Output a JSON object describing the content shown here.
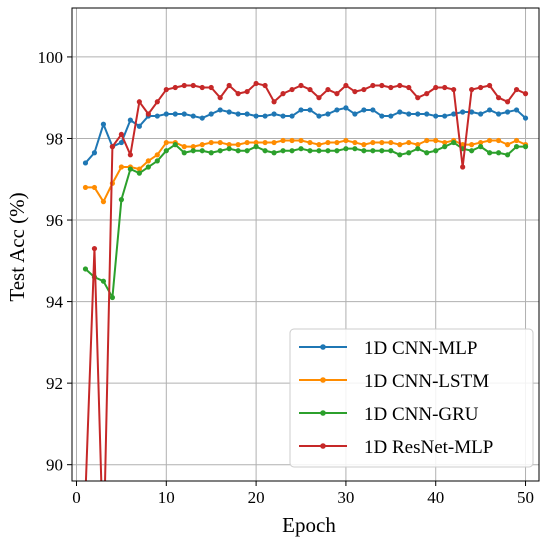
{
  "chart_data": {
    "type": "line",
    "title": "",
    "xlabel": "Epoch",
    "ylabel": "Test Acc (%)",
    "xlim": [
      -0.5,
      51.5
    ],
    "ylim": [
      89.6,
      101.2
    ],
    "xticks": [
      0,
      10,
      20,
      30,
      40,
      50
    ],
    "yticks": [
      90,
      92,
      94,
      96,
      98,
      100
    ],
    "grid": true,
    "legend_position": "bottom-right",
    "x": [
      1,
      2,
      3,
      4,
      5,
      6,
      7,
      8,
      9,
      10,
      11,
      12,
      13,
      14,
      15,
      16,
      17,
      18,
      19,
      20,
      21,
      22,
      23,
      24,
      25,
      26,
      27,
      28,
      29,
      30,
      31,
      32,
      33,
      34,
      35,
      36,
      37,
      38,
      39,
      40,
      41,
      42,
      43,
      44,
      45,
      46,
      47,
      48,
      49,
      50
    ],
    "series": [
      {
        "name": "1D CNN-MLP",
        "color": "#1f77b4",
        "values": [
          97.4,
          97.65,
          98.35,
          97.8,
          97.9,
          98.45,
          98.3,
          98.55,
          98.55,
          98.6,
          98.6,
          98.6,
          98.55,
          98.5,
          98.6,
          98.7,
          98.65,
          98.6,
          98.6,
          98.55,
          98.55,
          98.6,
          98.55,
          98.55,
          98.7,
          98.7,
          98.55,
          98.6,
          98.7,
          98.75,
          98.6,
          98.7,
          98.7,
          98.55,
          98.55,
          98.65,
          98.6,
          98.6,
          98.6,
          98.55,
          98.55,
          98.6,
          98.65,
          98.65,
          98.6,
          98.7,
          98.6,
          98.65,
          98.7,
          98.5
        ]
      },
      {
        "name": "1D CNN-LSTM",
        "color": "#ff8c00",
        "values": [
          96.8,
          96.8,
          96.45,
          96.9,
          97.3,
          97.3,
          97.25,
          97.45,
          97.6,
          97.9,
          97.9,
          97.8,
          97.8,
          97.85,
          97.9,
          97.9,
          97.85,
          97.85,
          97.9,
          97.9,
          97.9,
          97.9,
          97.95,
          97.95,
          97.95,
          97.9,
          97.85,
          97.9,
          97.9,
          97.95,
          97.9,
          97.85,
          97.9,
          97.9,
          97.9,
          97.85,
          97.9,
          97.85,
          97.95,
          97.95,
          97.9,
          97.95,
          97.85,
          97.85,
          97.9,
          97.95,
          97.95,
          97.85,
          97.95,
          97.85
        ]
      },
      {
        "name": "1D CNN-GRU",
        "color": "#2ca02c",
        "values": [
          94.8,
          94.6,
          94.5,
          94.1,
          96.5,
          97.25,
          97.15,
          97.3,
          97.45,
          97.7,
          97.85,
          97.65,
          97.7,
          97.7,
          97.65,
          97.7,
          97.75,
          97.7,
          97.7,
          97.8,
          97.7,
          97.65,
          97.7,
          97.7,
          97.75,
          97.7,
          97.7,
          97.7,
          97.7,
          97.75,
          97.75,
          97.7,
          97.7,
          97.7,
          97.7,
          97.6,
          97.65,
          97.75,
          97.65,
          97.7,
          97.8,
          97.9,
          97.75,
          97.7,
          97.8,
          97.65,
          97.65,
          97.6,
          97.8,
          97.8
        ]
      },
      {
        "name": "1D ResNet-MLP",
        "color": "#c62828",
        "values": [
          89.3,
          95.3,
          87.8,
          97.8,
          98.1,
          97.6,
          98.9,
          98.6,
          98.9,
          99.2,
          99.25,
          99.3,
          99.3,
          99.25,
          99.25,
          99.0,
          99.3,
          99.1,
          99.15,
          99.35,
          99.3,
          98.9,
          99.1,
          99.2,
          99.3,
          99.2,
          99.0,
          99.2,
          99.1,
          99.3,
          99.15,
          99.2,
          99.3,
          99.3,
          99.25,
          99.3,
          99.25,
          99.0,
          99.1,
          99.25,
          99.25,
          99.2,
          97.3,
          99.2,
          99.25,
          99.3,
          99.0,
          98.9,
          99.2,
          99.1
        ]
      }
    ]
  }
}
